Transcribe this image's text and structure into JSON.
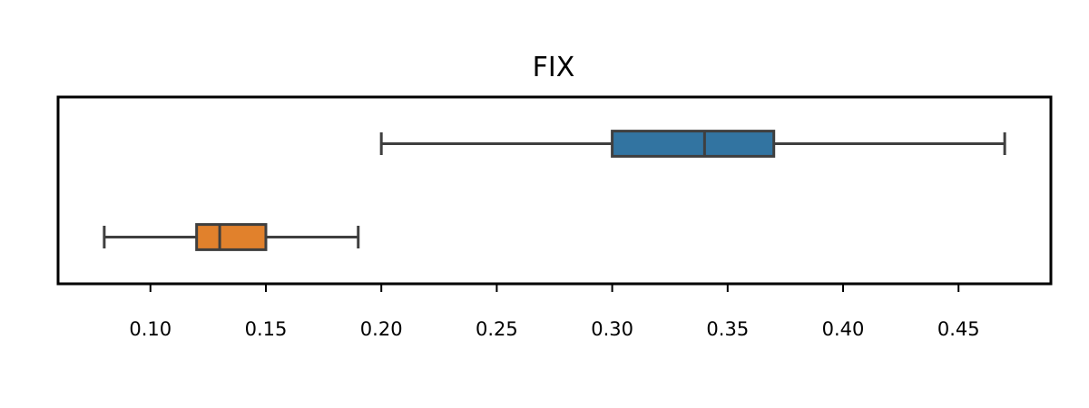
{
  "chart_data": {
    "type": "boxplot",
    "orientation": "horizontal",
    "title": "FIX",
    "xlabel": "",
    "ylabel": "",
    "xlim": [
      0.06,
      0.49
    ],
    "xticks": [
      0.1,
      0.15,
      0.2,
      0.25,
      0.3,
      0.35,
      0.4,
      0.45
    ],
    "xtick_labels": [
      "0.10",
      "0.15",
      "0.20",
      "0.25",
      "0.30",
      "0.35",
      "0.40",
      "0.45"
    ],
    "grid": false,
    "legend": "none",
    "boxes": [
      {
        "whisker_low": 0.2,
        "q1": 0.3,
        "median": 0.34,
        "q3": 0.37,
        "whisker_high": 0.47,
        "color": "#3274a1"
      },
      {
        "whisker_low": 0.08,
        "q1": 0.12,
        "median": 0.13,
        "q3": 0.15,
        "whisker_high": 0.19,
        "color": "#e1812c"
      }
    ],
    "edge_color": "#3f3f3f"
  }
}
